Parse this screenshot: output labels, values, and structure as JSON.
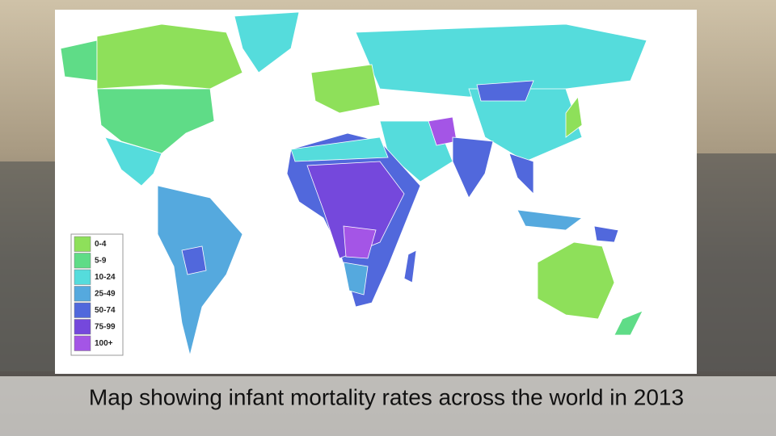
{
  "caption": "Map showing infant mortality rates across the world in 2013",
  "legend": {
    "items": [
      {
        "label": "0-4",
        "color": "#8ee05a"
      },
      {
        "label": "5-9",
        "color": "#5fdc87"
      },
      {
        "label": "10-24",
        "color": "#55dcdc"
      },
      {
        "label": "25-49",
        "color": "#55a9de"
      },
      {
        "label": "50-74",
        "color": "#5168dc"
      },
      {
        "label": "75-99",
        "color": "#7548dc"
      },
      {
        "label": "100+",
        "color": "#a455e6"
      }
    ]
  }
}
